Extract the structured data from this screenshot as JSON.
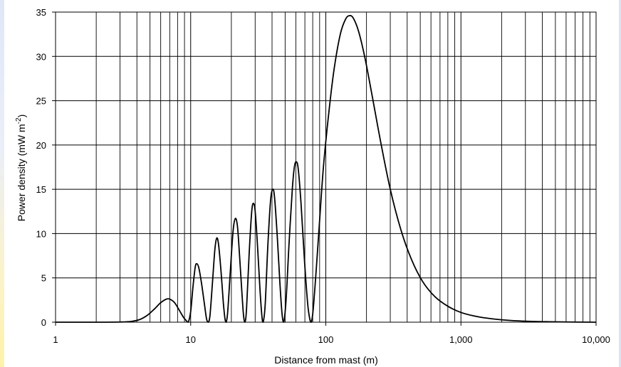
{
  "chart_data": {
    "type": "line",
    "title": "",
    "xlabel": "Distance from mast (m)",
    "ylabel_main": "Power density (mW m",
    "ylabel_sup": "-2",
    "ylabel_end": ")",
    "x_scale": "log",
    "xlim": [
      1,
      10000
    ],
    "ylim": [
      0,
      35
    ],
    "grid": "vertical (log decades and sub-divisions) and horizontal",
    "legend": "none",
    "x_ticks": [
      {
        "value": 1,
        "label": "1"
      },
      {
        "value": 10,
        "label": "10"
      },
      {
        "value": 100,
        "label": "100"
      },
      {
        "value": 1000,
        "label": "1,000"
      },
      {
        "value": 10000,
        "label": "10,000"
      }
    ],
    "y_ticks": [
      {
        "value": 0,
        "label": "0"
      },
      {
        "value": 5,
        "label": "5"
      },
      {
        "value": 10,
        "label": "10"
      },
      {
        "value": 15,
        "label": "15"
      },
      {
        "value": 20,
        "label": "20"
      },
      {
        "value": 25,
        "label": "25"
      },
      {
        "value": 30,
        "label": "30"
      },
      {
        "value": 35,
        "label": "35"
      }
    ],
    "line_color": "#000000",
    "series": [
      {
        "points": [
          [
            1,
            0
          ],
          [
            2,
            0
          ],
          [
            3,
            0.02
          ],
          [
            3.6,
            0.08
          ],
          [
            4.2,
            0.3
          ],
          [
            4.8,
            0.8
          ],
          [
            5.4,
            1.5
          ],
          [
            6.0,
            2.2
          ],
          [
            6.6,
            2.6
          ],
          [
            7.0,
            2.6
          ],
          [
            7.6,
            2.2
          ],
          [
            8.2,
            1.4
          ],
          [
            8.8,
            0.6
          ],
          [
            9.3,
            0.15
          ],
          [
            9.6,
            0
          ],
          [
            10.0,
            1.2
          ],
          [
            10.4,
            4.0
          ],
          [
            10.8,
            6.2
          ],
          [
            11.1,
            6.6
          ],
          [
            11.5,
            6.1
          ],
          [
            12.0,
            4.5
          ],
          [
            12.6,
            2.2
          ],
          [
            13.1,
            0.4
          ],
          [
            13.5,
            0
          ],
          [
            13.9,
            0.8
          ],
          [
            14.5,
            4.5
          ],
          [
            15.1,
            8.2
          ],
          [
            15.6,
            9.5
          ],
          [
            16.1,
            8.7
          ],
          [
            16.8,
            5.6
          ],
          [
            17.4,
            2.4
          ],
          [
            17.9,
            0.5
          ],
          [
            18.3,
            0
          ],
          [
            18.8,
            1.2
          ],
          [
            19.7,
            6.0
          ],
          [
            20.6,
            10.3
          ],
          [
            21.4,
            11.7
          ],
          [
            22.2,
            10.8
          ],
          [
            23.0,
            7.5
          ],
          [
            23.9,
            3.5
          ],
          [
            24.6,
            0.8
          ],
          [
            25.2,
            0
          ],
          [
            25.9,
            1.5
          ],
          [
            27.1,
            7.8
          ],
          [
            28.3,
            12.5
          ],
          [
            29.2,
            13.4
          ],
          [
            30.1,
            12.3
          ],
          [
            31.4,
            8.0
          ],
          [
            32.6,
            3.6
          ],
          [
            33.7,
            0.6
          ],
          [
            34.4,
            0
          ],
          [
            35.6,
            2.0
          ],
          [
            37.2,
            8.5
          ],
          [
            39.0,
            13.7
          ],
          [
            40.5,
            15.0
          ],
          [
            41.8,
            14.0
          ],
          [
            43.8,
            9.5
          ],
          [
            45.7,
            4.5
          ],
          [
            47.4,
            1.0
          ],
          [
            48.8,
            0
          ],
          [
            50.8,
            2.5
          ],
          [
            53.5,
            9.0
          ],
          [
            56.5,
            15.0
          ],
          [
            58.5,
            17.5
          ],
          [
            60.5,
            18.1
          ],
          [
            62.5,
            17.3
          ],
          [
            65.5,
            13.5
          ],
          [
            69.5,
            7.0
          ],
          [
            73.5,
            2.0
          ],
          [
            76.5,
            0.2
          ],
          [
            78.0,
            0
          ],
          [
            80.5,
            1.3
          ],
          [
            85,
            6
          ],
          [
            90,
            11.5
          ],
          [
            96,
            17.5
          ],
          [
            105,
            23.5
          ],
          [
            115,
            28.5
          ],
          [
            128,
            32.5
          ],
          [
            140,
            34.2
          ],
          [
            150,
            34.6
          ],
          [
            160,
            34.3
          ],
          [
            175,
            32.8
          ],
          [
            195,
            29.8
          ],
          [
            220,
            25.6
          ],
          [
            255,
            20.3
          ],
          [
            300,
            15.0
          ],
          [
            360,
            10.4
          ],
          [
            430,
            7.1
          ],
          [
            520,
            4.6
          ],
          [
            640,
            2.9
          ],
          [
            800,
            1.8
          ],
          [
            1000,
            1.1
          ],
          [
            1300,
            0.65
          ],
          [
            1700,
            0.38
          ],
          [
            2300,
            0.2
          ],
          [
            3200,
            0.1
          ],
          [
            4500,
            0.05
          ],
          [
            6500,
            0.02
          ],
          [
            10000,
            0
          ]
        ]
      }
    ]
  }
}
